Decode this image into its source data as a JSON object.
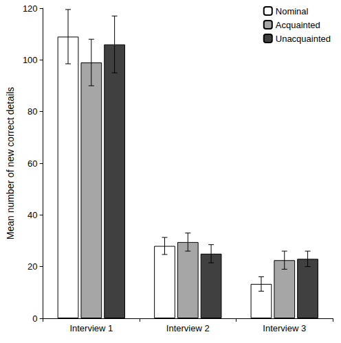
{
  "chart_data": {
    "type": "bar",
    "y_label": "Mean number of new correct details",
    "categories": [
      "Interview 1",
      "Interview 2",
      "Interview 3"
    ],
    "series": [
      {
        "name": "Nominal",
        "color": "#ffffff",
        "values": [
          109,
          28,
          13.3
        ],
        "errors": [
          10.5,
          3.3,
          2.8
        ]
      },
      {
        "name": "Acquainted",
        "color": "#a6a6a6",
        "values": [
          99,
          29.5,
          22.5
        ],
        "errors": [
          9,
          3.5,
          3.5
        ]
      },
      {
        "name": "Unacquainted",
        "color": "#404040",
        "values": [
          106,
          25,
          23
        ],
        "errors": [
          11,
          3.5,
          3
        ]
      }
    ],
    "ylim": [
      0,
      120
    ],
    "yticks": [
      0,
      20,
      40,
      60,
      80,
      100,
      120
    ],
    "grid": false,
    "legend": "upper right"
  }
}
